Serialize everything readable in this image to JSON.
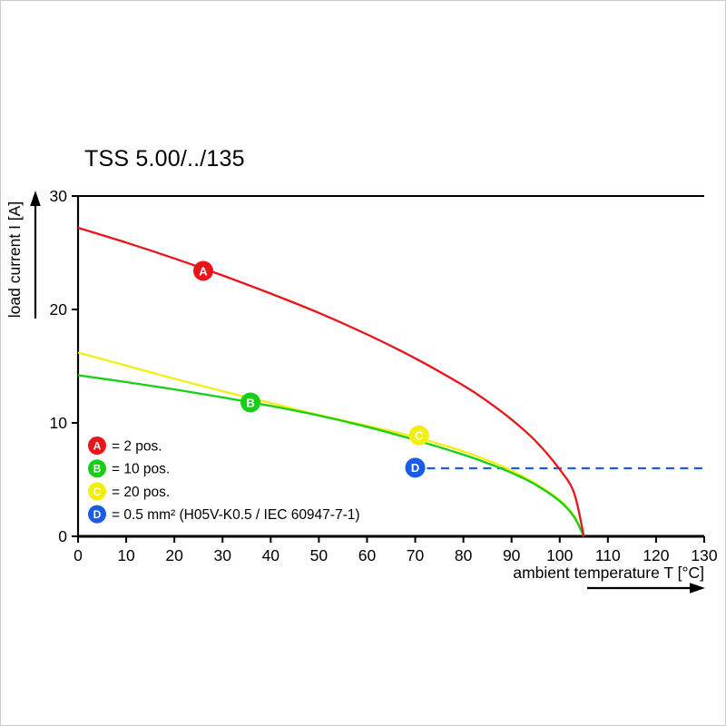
{
  "chart_data": {
    "type": "line",
    "title": "TSS 5.00/../135",
    "xlabel": "ambient temperature T [°C]",
    "ylabel": "load current I [A]",
    "xlim": [
      0,
      130
    ],
    "ylim": [
      0,
      30
    ],
    "xticks": [
      0,
      10,
      20,
      30,
      40,
      50,
      60,
      70,
      80,
      90,
      100,
      110,
      120,
      130
    ],
    "yticks": [
      0,
      10,
      20,
      30
    ],
    "grid": false,
    "legend_position": "inside-bottom-left",
    "series": [
      {
        "name": "A",
        "legend_label": "= 2 pos.",
        "color": "#e8151b",
        "style": "solid",
        "x": [
          0,
          10,
          20,
          30,
          40,
          50,
          60,
          70,
          80,
          85,
          90,
          95,
          100,
          103,
          105
        ],
        "y": [
          27.2,
          25.9,
          24.5,
          23.0,
          21.4,
          19.7,
          17.8,
          15.7,
          13.3,
          11.9,
          10.3,
          8.4,
          5.9,
          3.8,
          0
        ],
        "marker": {
          "x": 26,
          "y": 23.4
        }
      },
      {
        "name": "B",
        "legend_label": "= 10 pos.",
        "color": "#17cf17",
        "style": "solid",
        "x": [
          0,
          10,
          20,
          30,
          40,
          50,
          60,
          70,
          80,
          85,
          90,
          95,
          100,
          103,
          105
        ],
        "y": [
          14.2,
          13.6,
          12.95,
          12.25,
          11.5,
          10.65,
          9.65,
          8.5,
          7.2,
          6.45,
          5.6,
          4.55,
          3.1,
          1.7,
          0
        ],
        "marker": {
          "x": 35.8,
          "y": 11.8
        }
      },
      {
        "name": "C",
        "legend_label": "= 20 pos.",
        "color": "#f2ef0e",
        "style": "solid",
        "x": [
          0,
          10,
          20,
          30,
          40,
          50,
          60,
          70,
          80,
          85,
          90,
          95,
          100,
          103,
          105
        ],
        "y": [
          16.2,
          15.05,
          13.9,
          12.8,
          11.75,
          10.7,
          9.75,
          8.75,
          7.5,
          6.7,
          5.8,
          4.65,
          3.2,
          1.8,
          0
        ],
        "marker": {
          "x": 70.8,
          "y": 8.9
        }
      },
      {
        "name": "D",
        "legend_label": "= 0.5 mm² (H05V-K0.5 / IEC 60947-7-1)",
        "color": "#1a5ce8",
        "style": "dashed",
        "x": [
          69.5,
          130
        ],
        "y": [
          6,
          6
        ],
        "marker": {
          "x": 70,
          "y": 6.05
        }
      }
    ]
  }
}
